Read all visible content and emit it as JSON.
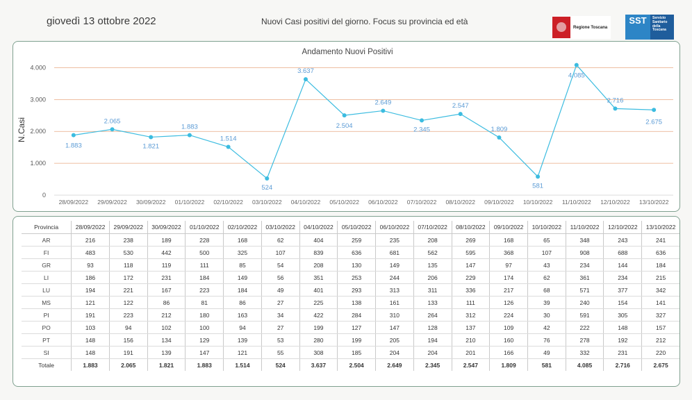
{
  "header": {
    "date": "giovedì 13 ottobre 2022",
    "title": "Nuovi Casi positivi del giorno. Focus su provincia ed età",
    "logo_regione": "Regione Toscana",
    "logo_sst_short": "SST",
    "logo_sst_lines": [
      "Servizio",
      "Sanitario",
      "della",
      "Toscana"
    ]
  },
  "chart_data": {
    "type": "line",
    "title": "Andamento Nuovi Positivi",
    "xlabel": "",
    "ylabel": "N.Casi",
    "ylim": [
      0,
      4250
    ],
    "yticks": [
      0,
      1000,
      2000,
      3000,
      4000
    ],
    "ytick_labels": [
      "0",
      "1.000",
      "2.000",
      "3.000",
      "4.000"
    ],
    "grid": true,
    "line_color": "#3cbce0",
    "grid_color": "#e8a882",
    "label_color": "#5b9bd5",
    "categories": [
      "28/09/2022",
      "29/09/2022",
      "30/09/2022",
      "01/10/2022",
      "02/10/2022",
      "03/10/2022",
      "04/10/2022",
      "05/10/2022",
      "06/10/2022",
      "07/10/2022",
      "08/10/2022",
      "09/10/2022",
      "10/10/2022",
      "11/10/2022",
      "12/10/2022",
      "13/10/2022"
    ],
    "values": [
      1883,
      2065,
      1821,
      1883,
      1514,
      524,
      3637,
      2504,
      2649,
      2345,
      2547,
      1809,
      581,
      4085,
      2716,
      2675
    ],
    "value_labels": [
      "1.883",
      "2.065",
      "1.821",
      "1.883",
      "1.514",
      "524",
      "3.637",
      "2.504",
      "2.649",
      "2.345",
      "2.547",
      "1.809",
      "581",
      "4.085",
      "2.716",
      "2.675"
    ]
  },
  "table": {
    "corner": "Provincia",
    "dates": [
      "28/09/2022",
      "29/09/2022",
      "30/09/2022",
      "01/10/2022",
      "02/10/2022",
      "03/10/2022",
      "04/10/2022",
      "05/10/2022",
      "06/10/2022",
      "07/10/2022",
      "08/10/2022",
      "09/10/2022",
      "10/10/2022",
      "11/10/2022",
      "12/10/2022",
      "13/10/2022"
    ],
    "rows": [
      {
        "name": "AR",
        "values": [
          "216",
          "238",
          "189",
          "228",
          "168",
          "62",
          "404",
          "259",
          "235",
          "208",
          "269",
          "168",
          "65",
          "348",
          "243",
          "241"
        ]
      },
      {
        "name": "FI",
        "values": [
          "483",
          "530",
          "442",
          "500",
          "325",
          "107",
          "839",
          "636",
          "681",
          "562",
          "595",
          "368",
          "107",
          "908",
          "688",
          "636"
        ]
      },
      {
        "name": "GR",
        "values": [
          "93",
          "118",
          "119",
          "111",
          "85",
          "54",
          "208",
          "130",
          "149",
          "135",
          "147",
          "97",
          "43",
          "234",
          "144",
          "184"
        ]
      },
      {
        "name": "LI",
        "values": [
          "186",
          "172",
          "231",
          "184",
          "149",
          "56",
          "351",
          "253",
          "244",
          "206",
          "229",
          "174",
          "62",
          "361",
          "234",
          "215"
        ]
      },
      {
        "name": "LU",
        "values": [
          "194",
          "221",
          "167",
          "223",
          "184",
          "49",
          "401",
          "293",
          "313",
          "311",
          "336",
          "217",
          "68",
          "571",
          "377",
          "342"
        ]
      },
      {
        "name": "MS",
        "values": [
          "121",
          "122",
          "86",
          "81",
          "86",
          "27",
          "225",
          "138",
          "161",
          "133",
          "111",
          "126",
          "39",
          "240",
          "154",
          "141"
        ]
      },
      {
        "name": "PI",
        "values": [
          "191",
          "223",
          "212",
          "180",
          "163",
          "34",
          "422",
          "284",
          "310",
          "264",
          "312",
          "224",
          "30",
          "591",
          "305",
          "327"
        ]
      },
      {
        "name": "PO",
        "values": [
          "103",
          "94",
          "102",
          "100",
          "94",
          "27",
          "199",
          "127",
          "147",
          "128",
          "137",
          "109",
          "42",
          "222",
          "148",
          "157"
        ]
      },
      {
        "name": "PT",
        "values": [
          "148",
          "156",
          "134",
          "129",
          "139",
          "53",
          "280",
          "199",
          "205",
          "194",
          "210",
          "160",
          "76",
          "278",
          "192",
          "212"
        ]
      },
      {
        "name": "SI",
        "values": [
          "148",
          "191",
          "139",
          "147",
          "121",
          "55",
          "308",
          "185",
          "204",
          "204",
          "201",
          "166",
          "49",
          "332",
          "231",
          "220"
        ]
      }
    ],
    "total_label": "Totale",
    "totals": [
      "1.883",
      "2.065",
      "1.821",
      "1.883",
      "1.514",
      "524",
      "3.637",
      "2.504",
      "2.649",
      "2.345",
      "2.547",
      "1.809",
      "581",
      "4.085",
      "2.716",
      "2.675"
    ]
  }
}
